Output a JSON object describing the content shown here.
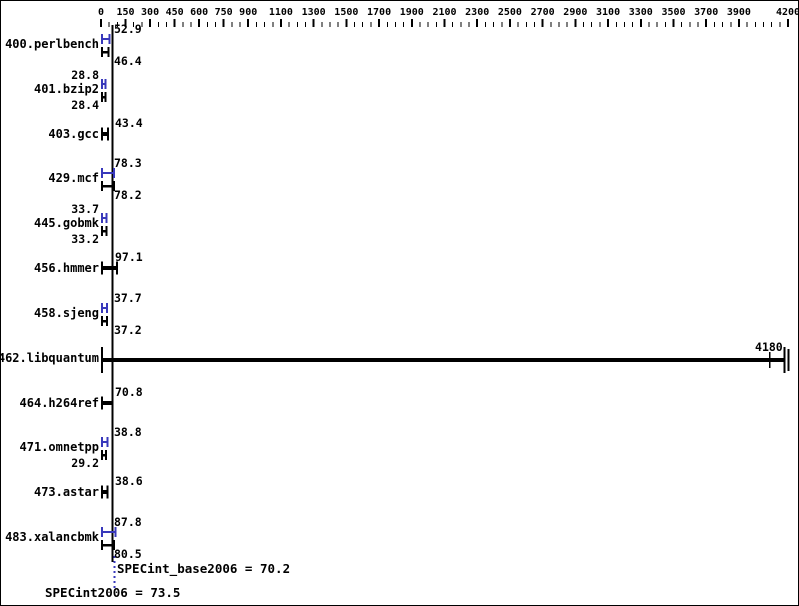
{
  "chart_data": {
    "type": "bar",
    "orientation": "horizontal",
    "axis": {
      "min": 0,
      "max": 4200,
      "minor_tick_step": 50,
      "position": "top",
      "tick_labels": [
        0,
        150,
        300,
        450,
        600,
        750,
        900,
        1100,
        1300,
        1500,
        1700,
        1900,
        2100,
        2300,
        2500,
        2700,
        2900,
        3100,
        3300,
        3500,
        3700,
        3900,
        4200
      ]
    },
    "colors": {
      "peak": "#3838bb",
      "base": "#000000"
    },
    "benchmarks": [
      {
        "name": "400.perlbench",
        "peak": 52.9,
        "base": 46.4,
        "value_side": "right"
      },
      {
        "name": "401.bzip2",
        "peak": 28.8,
        "base": 28.4,
        "value_side": "left"
      },
      {
        "name": "403.gcc",
        "base": 43.4,
        "value_side": "right"
      },
      {
        "name": "429.mcf",
        "peak": 78.3,
        "base": 78.2,
        "value_side": "right"
      },
      {
        "name": "445.gobmk",
        "peak": 33.7,
        "base": 33.2,
        "value_side": "left"
      },
      {
        "name": "456.hmmer",
        "base": 97.1,
        "value_side": "right"
      },
      {
        "name": "458.sjeng",
        "peak": 37.7,
        "base": 37.2,
        "value_side": "right"
      },
      {
        "name": "462.libquantum",
        "base": 4180,
        "value_side": "bar-end"
      },
      {
        "name": "464.h264ref",
        "base": 70.8,
        "value_side": "right"
      },
      {
        "name": "471.omnetpp",
        "peak": 38.8,
        "base": 29.2,
        "peak_side": "right",
        "base_side": "left"
      },
      {
        "name": "473.astar",
        "base": 38.6,
        "value_side": "right"
      },
      {
        "name": "483.xalancbmk",
        "peak": 87.8,
        "base": 80.5,
        "value_side": "right"
      }
    ],
    "summary": {
      "base_label": "SPECint_base2006 = 70.2",
      "base_value": 70.2,
      "peak_label": "SPECint2006 = 73.5",
      "peak_value": 73.5
    }
  }
}
